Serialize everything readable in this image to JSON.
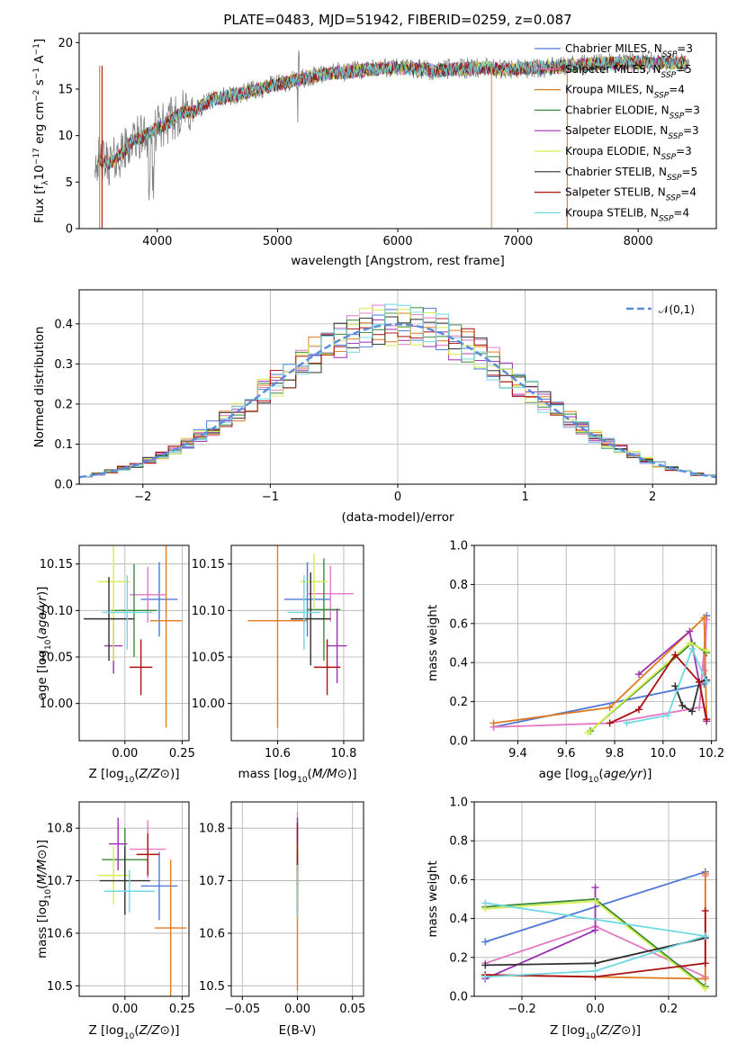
{
  "chart_data": [
    {
      "panel": "spectrum",
      "type": "line",
      "title": "PLATE=0483, MJD=51942, FIBERID=0259, z=0.087",
      "xlabel": "wavelength [Angstrom, rest frame]",
      "ylabel": "Flux [f_λ 10^{-17} erg cm^{-2} s^{-1} A^{-1}]",
      "xlim": [
        3350,
        8650
      ],
      "ylim": [
        0,
        21
      ],
      "xticks": [
        "4000",
        "5000",
        "6000",
        "7000",
        "8000"
      ],
      "yticks": [
        "0",
        "5",
        "10",
        "15",
        "20"
      ],
      "grid": false,
      "legend_position": "top-right",
      "data_color": "#808080",
      "continuum": {
        "x": [
          3500,
          3600,
          3700,
          3800,
          3900,
          4000,
          4100,
          4200,
          4300,
          4400,
          4500,
          4700,
          4900,
          5100,
          5300,
          5500,
          5700,
          5900,
          6100,
          6300,
          6500,
          6700,
          6900,
          7100,
          7300,
          7500,
          7800,
          8100,
          8400
        ],
        "y": [
          7.5,
          7.0,
          8.0,
          9.5,
          10.0,
          10.8,
          11.5,
          12.5,
          12.5,
          13.5,
          14.0,
          14.5,
          15.2,
          15.8,
          16.4,
          16.8,
          17.0,
          17.3,
          17.2,
          17.0,
          17.2,
          17.3,
          17.1,
          17.3,
          17.3,
          17.6,
          17.8,
          17.9,
          17.8
        ]
      },
      "series": [
        {
          "name": "Chabrier MILES, N_SSP=3",
          "color": "#4e79d7"
        },
        {
          "name": "Salpeter MILES, N_SSP=5",
          "color": "#e377c2"
        },
        {
          "name": "Kroupa MILES, N_SSP=4",
          "color": "#e07b20"
        },
        {
          "name": "Chabrier ELODIE, N_SSP=3",
          "color": "#3a8a3a"
        },
        {
          "name": "Salpeter ELODIE, N_SSP=3",
          "color": "#9b30b0"
        },
        {
          "name": "Kroupa ELODIE, N_SSP=3",
          "color": "#d4ee4a"
        },
        {
          "name": "Chabrier STELIB, N_SSP=5",
          "color": "#303030"
        },
        {
          "name": "Salpeter STELIB, N_SSP=4",
          "color": "#aa1111"
        },
        {
          "name": "Kroupa STELIB, N_SSP=4",
          "color": "#6fd9e2"
        }
      ]
    },
    {
      "panel": "residuals",
      "type": "line",
      "xlabel": "(data-model)/error",
      "ylabel": "Normed distribution",
      "xlim": [
        -2.5,
        2.5
      ],
      "ylim": [
        0,
        0.485
      ],
      "xticks": [
        "−2",
        "−1",
        "0",
        "1",
        "2"
      ],
      "yticks": [
        "0.0",
        "0.1",
        "0.2",
        "0.3",
        "0.4"
      ],
      "grid": true,
      "legend": "𝒩(0,1)",
      "legend_position": "top-right",
      "gaussian_color": "#5b8bdb"
    },
    {
      "panel": "age-vs-Z",
      "type": "scatter",
      "xlabel": "Z [log10(Z/Z⊙)]",
      "ylabel": "age  [log10(age/yr)]",
      "xlim": [
        -0.2,
        0.28
      ],
      "ylim": [
        9.96,
        10.17
      ],
      "xticks": [
        "0.00",
        "0.25"
      ],
      "yticks": [
        "10.00",
        "10.05",
        "10.10",
        "10.15"
      ],
      "grid": true,
      "points": [
        {
          "x": 0.15,
          "y": 10.112,
          "xerr": 0.08,
          "yerr": 0.04,
          "color": "#4e79d7"
        },
        {
          "x": 0.1,
          "y": 10.117,
          "xerr": 0.08,
          "yerr": 0.03,
          "color": "#e377c2"
        },
        {
          "x": 0.18,
          "y": 10.089,
          "xerr": 0.07,
          "yerr": 0.115,
          "color": "#e07b20"
        },
        {
          "x": 0.04,
          "y": 10.1,
          "xerr": 0.1,
          "yerr": 0.05,
          "color": "#3a8a3a"
        },
        {
          "x": -0.05,
          "y": 10.062,
          "xerr": 0.04,
          "yerr": 0.03,
          "color": "#9b30b0"
        },
        {
          "x": -0.05,
          "y": 10.131,
          "xerr": 0.07,
          "yerr": 0.085,
          "color": "#d4ee4a"
        },
        {
          "x": -0.07,
          "y": 10.091,
          "xerr": 0.11,
          "yerr": 0.045,
          "color": "#303030"
        },
        {
          "x": 0.07,
          "y": 10.039,
          "xerr": 0.05,
          "yerr": 0.03,
          "color": "#aa1111"
        },
        {
          "x": 0.01,
          "y": 10.098,
          "xerr": 0.11,
          "yerr": 0.04,
          "color": "#6fd9e2"
        }
      ]
    },
    {
      "panel": "age-vs-mass",
      "type": "scatter",
      "xlabel": "mass [log10(M/M⊙)]",
      "xlim": [
        10.46,
        10.86
      ],
      "ylim": [
        9.96,
        10.17
      ],
      "xticks": [
        "10.6",
        "10.8"
      ],
      "yticks": [
        "10.00",
        "10.05",
        "10.10",
        "10.15"
      ],
      "grid": true,
      "points": [
        {
          "x": 10.69,
          "y": 10.112,
          "xerr": 0.07,
          "yerr": 0.04,
          "color": "#4e79d7"
        },
        {
          "x": 10.76,
          "y": 10.118,
          "xerr": 0.07,
          "yerr": 0.03,
          "color": "#e377c2"
        },
        {
          "x": 10.6,
          "y": 10.089,
          "xerr": 0.09,
          "yerr": 0.115,
          "color": "#e07b20"
        },
        {
          "x": 10.74,
          "y": 10.101,
          "xerr": 0.05,
          "yerr": 0.055,
          "color": "#3a8a3a"
        },
        {
          "x": 10.78,
          "y": 10.062,
          "xerr": 0.03,
          "yerr": 0.04,
          "color": "#9b30b0"
        },
        {
          "x": 10.71,
          "y": 10.131,
          "xerr": 0.04,
          "yerr": 0.03,
          "color": "#d4ee4a"
        },
        {
          "x": 10.7,
          "y": 10.091,
          "xerr": 0.06,
          "yerr": 0.05,
          "color": "#303030"
        },
        {
          "x": 10.75,
          "y": 10.039,
          "xerr": 0.04,
          "yerr": 0.03,
          "color": "#aa1111"
        },
        {
          "x": 10.68,
          "y": 10.098,
          "xerr": 0.05,
          "yerr": 0.04,
          "color": "#6fd9e2"
        }
      ]
    },
    {
      "panel": "mass-weight-vs-age",
      "type": "line",
      "xlabel": "age  [log10(age/yr)]",
      "ylabel": "mass weight",
      "xlim": [
        9.22,
        10.22
      ],
      "ylim": [
        0,
        1
      ],
      "xticks": [
        "9.4",
        "9.6",
        "9.8",
        "10.0",
        "10.2"
      ],
      "yticks": [
        "0.0",
        "0.2",
        "0.4",
        "0.6",
        "0.8",
        "1.0"
      ],
      "grid": true,
      "series": [
        {
          "color": "#4e79d7",
          "x": [
            9.3,
            10.17,
            10.18
          ],
          "y": [
            0.07,
            0.29,
            0.64
          ]
        },
        {
          "color": "#e377c2",
          "x": [
            9.3,
            9.78,
            10.15,
            10.18,
            10.17
          ],
          "y": [
            0.07,
            0.09,
            0.17,
            0.62,
            0.36
          ]
        },
        {
          "color": "#e07b20",
          "x": [
            9.3,
            9.78,
            10.17,
            10.18
          ],
          "y": [
            0.09,
            0.17,
            0.63,
            0.1
          ]
        },
        {
          "color": "#3a8a3a",
          "x": [
            9.7,
            10.12,
            10.18
          ],
          "y": [
            0.05,
            0.5,
            0.45
          ]
        },
        {
          "color": "#9b30b0",
          "x": [
            9.9,
            10.11,
            10.18
          ],
          "y": [
            0.34,
            0.56,
            0.1
          ]
        },
        {
          "color": "#d4ee4a",
          "x": [
            9.69,
            10.11,
            10.18
          ],
          "y": [
            0.04,
            0.5,
            0.46
          ]
        },
        {
          "color": "#303030",
          "x": [
            10.05,
            10.08,
            10.12,
            10.15,
            10.18
          ],
          "y": [
            0.28,
            0.18,
            0.15,
            0.3,
            0.31
          ]
        },
        {
          "color": "#aa1111",
          "x": [
            9.78,
            9.9,
            10.05,
            10.15,
            10.18
          ],
          "y": [
            0.09,
            0.16,
            0.44,
            0.3,
            0.11
          ]
        },
        {
          "color": "#6fd9e2",
          "x": [
            9.85,
            10.02,
            10.12,
            10.18
          ],
          "y": [
            0.09,
            0.13,
            0.47,
            0.3
          ]
        }
      ]
    },
    {
      "panel": "mass-vs-Z",
      "type": "scatter",
      "xlabel": "Z [log10(Z/Z⊙)]",
      "ylabel": "mass [log10(M/M⊙)]",
      "xlim": [
        -0.2,
        0.28
      ],
      "ylim": [
        10.48,
        10.85
      ],
      "xticks": [
        "0.00",
        "0.25"
      ],
      "yticks": [
        "10.5",
        "10.6",
        "10.7",
        "10.8"
      ],
      "grid": true,
      "points": [
        {
          "x": 0.15,
          "y": 10.69,
          "xerr": 0.08,
          "yerr": 0.065,
          "color": "#4e79d7"
        },
        {
          "x": 0.1,
          "y": 10.76,
          "xerr": 0.08,
          "yerr": 0.055,
          "color": "#e377c2"
        },
        {
          "x": 0.2,
          "y": 10.61,
          "xerr": 0.07,
          "yerr": 0.13,
          "color": "#e07b20"
        },
        {
          "x": 0.0,
          "y": 10.74,
          "xerr": 0.1,
          "yerr": 0.06,
          "color": "#3a8a3a"
        },
        {
          "x": -0.03,
          "y": 10.77,
          "xerr": 0.04,
          "yerr": 0.05,
          "color": "#9b30b0"
        },
        {
          "x": -0.05,
          "y": 10.71,
          "xerr": 0.07,
          "yerr": 0.055,
          "color": "#d4ee4a"
        },
        {
          "x": 0.0,
          "y": 10.7,
          "xerr": 0.11,
          "yerr": 0.065,
          "color": "#303030"
        },
        {
          "x": 0.1,
          "y": 10.75,
          "xerr": 0.05,
          "yerr": 0.04,
          "color": "#aa1111"
        },
        {
          "x": 0.02,
          "y": 10.68,
          "xerr": 0.11,
          "yerr": 0.04,
          "color": "#6fd9e2"
        }
      ]
    },
    {
      "panel": "mass-vs-EBV",
      "type": "scatter",
      "xlabel": "E(B-V)",
      "xlim": [
        -0.06,
        0.06
      ],
      "ylim": [
        10.48,
        10.85
      ],
      "xticks": [
        "−0.05",
        "0.00",
        "0.05"
      ],
      "yticks": [
        "10.5",
        "10.6",
        "10.7",
        "10.8"
      ],
      "grid": true,
      "points": [
        {
          "x": 0.0,
          "y": 10.69,
          "yerr": 0.06,
          "color": "#4e79d7"
        },
        {
          "x": 0.0,
          "y": 10.76,
          "yerr": 0.07,
          "color": "#e377c2"
        },
        {
          "x": 0.0,
          "y": 10.61,
          "yerr": 0.12,
          "color": "#e07b20"
        },
        {
          "x": 0.0,
          "y": 10.74,
          "yerr": 0.06,
          "color": "#3a8a3a"
        },
        {
          "x": 0.0,
          "y": 10.77,
          "yerr": 0.05,
          "color": "#9b30b0"
        },
        {
          "x": 0.0,
          "y": 10.71,
          "yerr": 0.06,
          "color": "#d4ee4a"
        },
        {
          "x": 0.0,
          "y": 10.7,
          "yerr": 0.06,
          "color": "#303030"
        },
        {
          "x": 0.0,
          "y": 10.75,
          "yerr": 0.06,
          "color": "#aa1111"
        },
        {
          "x": 0.0,
          "y": 10.68,
          "yerr": 0.05,
          "color": "#6fd9e2"
        }
      ]
    },
    {
      "panel": "mass-weight-vs-Z",
      "type": "line",
      "xlabel": "Z [log10(Z/Z⊙)]",
      "ylabel": "mass weight",
      "xlim": [
        -0.33,
        0.33
      ],
      "ylim": [
        0,
        1
      ],
      "xticks": [
        "−0.2",
        "0.0",
        "0.2"
      ],
      "yticks": [
        "0.0",
        "0.2",
        "0.4",
        "0.6",
        "0.8",
        "1.0"
      ],
      "grid": true,
      "series": [
        {
          "color": "#4e79d7",
          "x": [
            -0.3,
            0.3
          ],
          "y": [
            0.28,
            0.64
          ]
        },
        {
          "color": "#e377c2",
          "x": [
            -0.3,
            0.0,
            0.3,
            0.3
          ],
          "y": [
            0.17,
            0.36,
            0.1,
            0.62
          ]
        },
        {
          "color": "#e07b20",
          "x": [
            -0.3,
            0.3,
            0.3
          ],
          "y": [
            0.11,
            0.09,
            0.63
          ]
        },
        {
          "color": "#3a8a3a",
          "x": [
            -0.3,
            0.0,
            0.3
          ],
          "y": [
            0.46,
            0.5,
            0.05
          ]
        },
        {
          "color": "#9b30b0",
          "x": [
            -0.3,
            0.0,
            0.0
          ],
          "y": [
            0.09,
            0.34,
            0.56
          ]
        },
        {
          "color": "#d4ee4a",
          "x": [
            -0.3,
            0.0,
            0.3
          ],
          "y": [
            0.45,
            0.49,
            0.04
          ]
        },
        {
          "color": "#303030",
          "x": [
            -0.3,
            0.0,
            0.3
          ],
          "y": [
            0.16,
            0.17,
            0.3
          ]
        },
        {
          "color": "#aa1111",
          "x": [
            -0.3,
            0.0,
            0.3,
            0.3
          ],
          "y": [
            0.11,
            0.1,
            0.17,
            0.44
          ]
        },
        {
          "color": "#6fd9e2",
          "x": [
            -0.3,
            0.0,
            0.3,
            -0.3
          ],
          "y": [
            0.1,
            0.13,
            0.31,
            0.48
          ]
        }
      ]
    }
  ]
}
